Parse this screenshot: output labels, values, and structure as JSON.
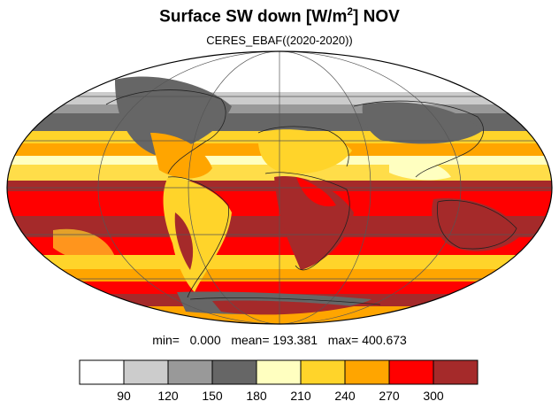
{
  "title": {
    "main": "Surface SW down [W/m",
    "superscript": "2",
    "suffix": "]  NOV"
  },
  "subtitle": "CERES_EBAF((2020-2020))",
  "stats": {
    "min_label": "min=",
    "min_value": "0.000",
    "mean_label": "mean=",
    "mean_value": "193.381",
    "max_label": "max=",
    "max_value": "400.673"
  },
  "colorbar": {
    "levels": [
      "90",
      "120",
      "150",
      "180",
      "210",
      "240",
      "270",
      "300"
    ],
    "colors": [
      "#ffffff",
      "#cccccc",
      "#999999",
      "#666666",
      "#ffffc0",
      "#ffd42a",
      "#ffa500",
      "#ff0000",
      "#a52a2a"
    ]
  },
  "legend_colors": {
    "coastline": "#222222",
    "grid": "#555555"
  }
}
